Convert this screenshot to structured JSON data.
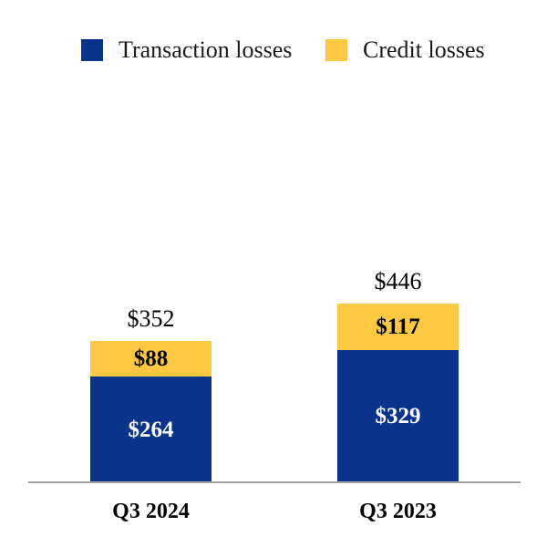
{
  "legend": {
    "items": [
      {
        "label": "Transaction losses",
        "color": "#0a348c"
      },
      {
        "label": "Credit losses",
        "color": "#ffc843"
      }
    ]
  },
  "chart_data": {
    "type": "bar",
    "stacked": true,
    "orientation": "vertical",
    "categories": [
      "Q3 2024",
      "Q3 2023"
    ],
    "series": [
      {
        "name": "Transaction losses",
        "color": "#0a348c",
        "values": [
          264,
          329
        ],
        "data_labels": [
          "$264",
          "$329"
        ],
        "label_color": "#ffffff"
      },
      {
        "name": "Credit losses",
        "color": "#ffc843",
        "values": [
          88,
          117
        ],
        "data_labels": [
          "$88",
          "$117"
        ],
        "label_color": "#000000"
      }
    ],
    "totals": [
      352,
      446
    ],
    "total_labels": [
      "$352",
      "$446"
    ],
    "xlabel": "",
    "ylabel": "",
    "axis_line_color": "#a6a6a6",
    "grid": false,
    "legend_position": "top"
  }
}
